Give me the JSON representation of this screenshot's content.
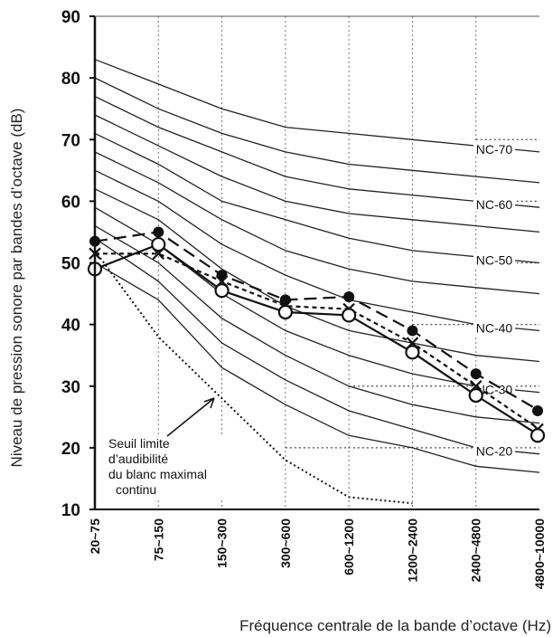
{
  "chart_data": {
    "type": "line",
    "title": "",
    "xlabel": "Fréquence centrale de la bande d’octave (Hz)",
    "ylabel": "Niveau de pression sonore par bandes d’octave (dB)",
    "categories": [
      "20~75",
      "75~150",
      "150~300",
      "300~600",
      "600~1200",
      "1200~2400",
      "2400~4800",
      "4800~10000"
    ],
    "ylim": [
      10,
      90
    ],
    "yticks": [
      10,
      20,
      30,
      40,
      50,
      60,
      70,
      80,
      90
    ],
    "grid": true,
    "nc_curves": [
      {
        "name": "NC-70",
        "labeled": true,
        "values": [
          83,
          79,
          75,
          72,
          71,
          70,
          69,
          68
        ]
      },
      {
        "name": "NC-65",
        "labeled": false,
        "values": [
          80,
          75,
          71,
          68,
          66,
          65,
          64,
          63
        ]
      },
      {
        "name": "NC-60",
        "labeled": true,
        "values": [
          77,
          72,
          68,
          64,
          62,
          61,
          60,
          59
        ]
      },
      {
        "name": "NC-55",
        "labeled": false,
        "values": [
          74,
          69,
          64,
          60,
          58,
          57,
          56,
          55
        ]
      },
      {
        "name": "NC-50",
        "labeled": true,
        "values": [
          71,
          66,
          60,
          57,
          54,
          52,
          51,
          50
        ]
      },
      {
        "name": "NC-45",
        "labeled": false,
        "values": [
          68,
          63,
          57,
          52,
          49,
          47,
          46,
          45
        ]
      },
      {
        "name": "NC-40",
        "labeled": true,
        "values": [
          65,
          60,
          53,
          48,
          44,
          42,
          40,
          39
        ]
      },
      {
        "name": "NC-35",
        "labeled": false,
        "values": [
          62,
          57,
          49,
          43,
          39,
          37,
          35,
          34
        ]
      },
      {
        "name": "NC-30",
        "labeled": true,
        "values": [
          59,
          53,
          45,
          39,
          35,
          32,
          30,
          29
        ]
      },
      {
        "name": "NC-25",
        "labeled": false,
        "values": [
          56,
          50,
          41,
          35,
          30,
          27,
          25,
          24
        ]
      },
      {
        "name": "NC-20",
        "labeled": true,
        "values": [
          54,
          47,
          37,
          31,
          26,
          23,
          20,
          19
        ]
      },
      {
        "name": "NC-15",
        "labeled": false,
        "values": [
          50,
          44,
          33,
          27,
          22,
          20,
          17,
          16
        ]
      }
    ],
    "threshold_curve": {
      "values": [
        52,
        38,
        28,
        18,
        12,
        11
      ],
      "label_lines": [
        "Seuil  limite",
        "d’audibilité",
        "du blanc maximal",
        "continu"
      ]
    },
    "series": [
      {
        "values": [
          53.5,
          55,
          48,
          44,
          44.5,
          39,
          32,
          26
        ],
        "marker": "filled-circle",
        "line": "long-dash"
      },
      {
        "values": [
          51.5,
          51.5,
          47,
          43,
          42.5,
          37,
          30,
          23
        ],
        "marker": "cross",
        "line": "short-dash"
      },
      {
        "values": [
          49,
          53,
          45.5,
          42,
          41.5,
          35.5,
          28.5,
          22
        ],
        "marker": "open-circle",
        "line": "solid"
      }
    ],
    "dotted_guides": [
      {
        "y": 30,
        "x_from_cat": 4,
        "x_to_cat": 7
      },
      {
        "y": 40,
        "x_from_cat": 5,
        "x_to_cat": 7
      },
      {
        "y": 50,
        "x_from_cat": 6,
        "x_to_cat": 7
      },
      {
        "y": 20,
        "x_from_cat": 3,
        "x_to_cat": 7
      },
      {
        "y": 60,
        "x_from_cat": 6,
        "x_to_cat": 7
      },
      {
        "y": 70,
        "x_from_cat": 6,
        "x_to_cat": 7
      }
    ]
  }
}
